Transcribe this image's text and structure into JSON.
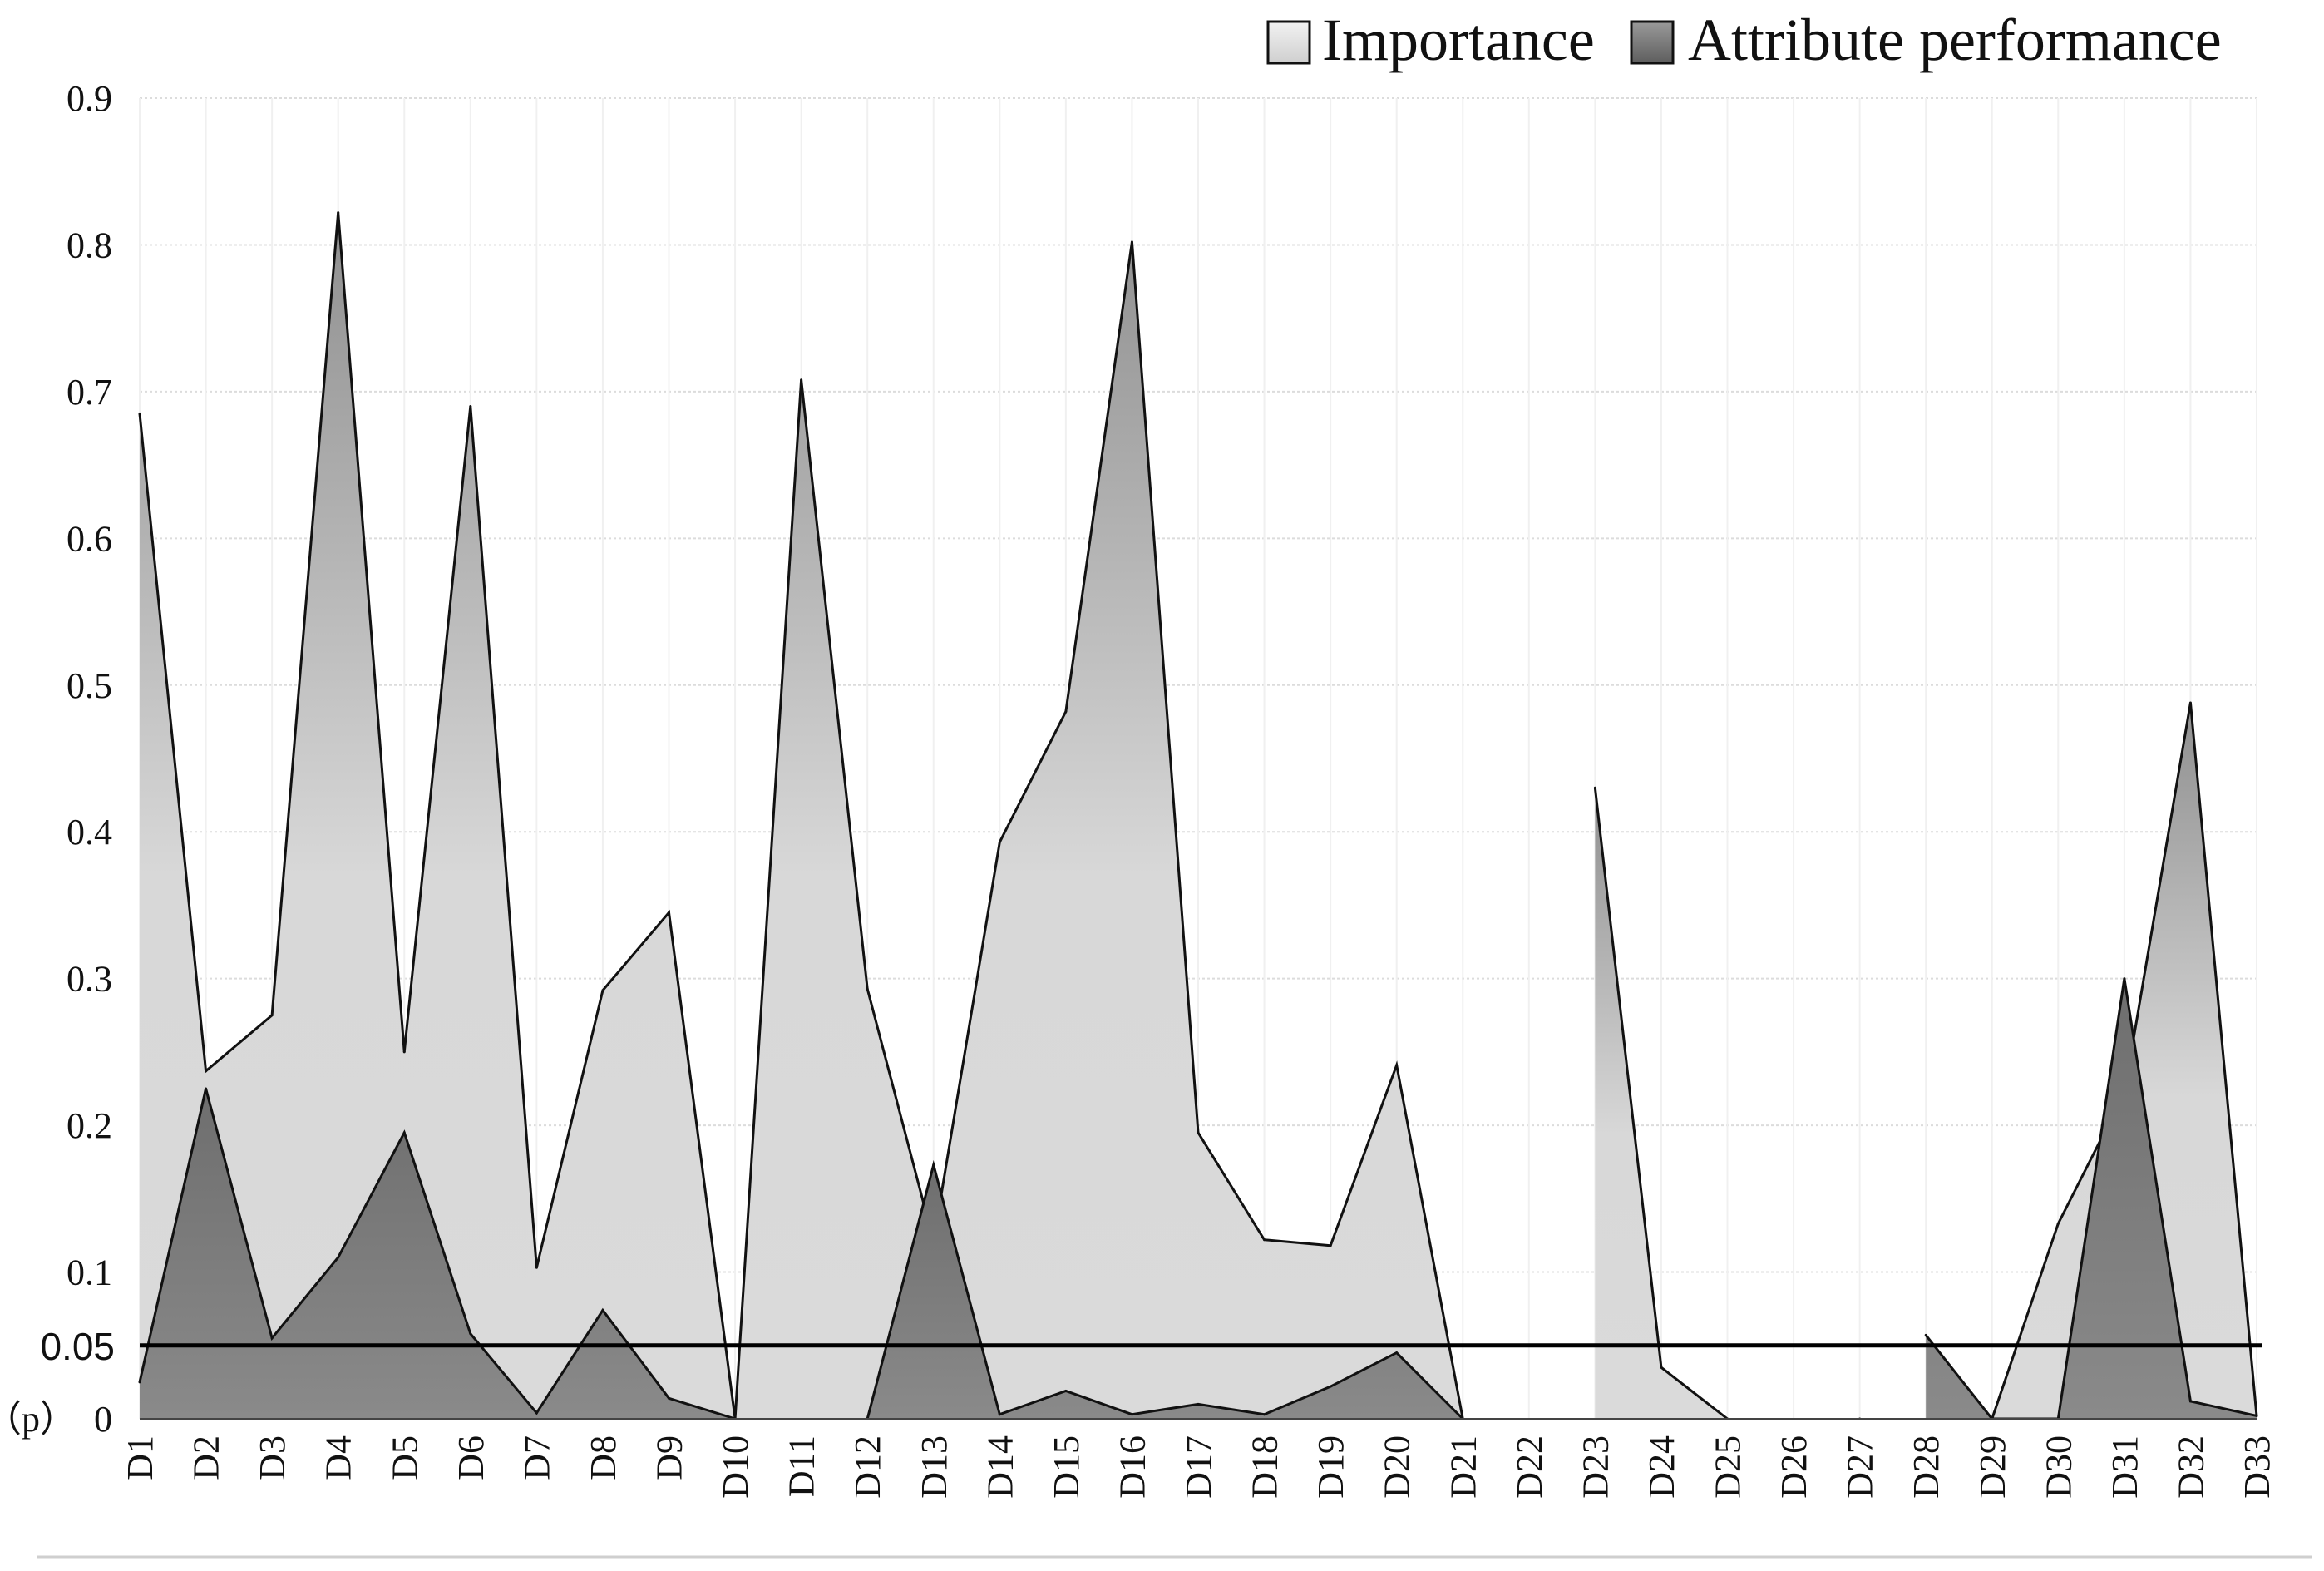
{
  "chart_data": {
    "type": "area",
    "categories": [
      "D1",
      "D2",
      "D3",
      "D4",
      "D5",
      "D6",
      "D7",
      "D8",
      "D9",
      "D10",
      "D11",
      "D12",
      "D13",
      "D14",
      "D15",
      "D16",
      "D17",
      "D18",
      "D19",
      "D20",
      "D21",
      "D22",
      "D23",
      "D24",
      "D25",
      "D26",
      "D27",
      "D28",
      "D29",
      "D30",
      "D31",
      "D32",
      "D33"
    ],
    "series": [
      {
        "name": "Importance",
        "color": "#d4d4d4",
        "values": [
          0.685,
          0.237,
          0.275,
          0.822,
          0.25,
          0.69,
          0.103,
          0.292,
          0.345,
          0.0,
          0.708,
          0.293,
          0.121,
          0.393,
          0.482,
          0.802,
          0.195,
          0.122,
          0.118,
          0.241,
          0.0,
          null,
          0.43,
          0.035,
          0.0,
          null,
          0.0,
          null,
          0.0,
          0.133,
          0.222,
          0.488,
          0.002
        ]
      },
      {
        "name": "Attribute performance",
        "color": "#7a7a7a",
        "values": [
          0.025,
          0.225,
          0.055,
          0.11,
          0.195,
          0.058,
          0.004,
          0.074,
          0.014,
          0.0,
          null,
          0.0,
          0.173,
          0.003,
          0.019,
          0.003,
          0.01,
          0.003,
          0.022,
          0.045,
          0.0,
          null,
          null,
          null,
          null,
          null,
          null,
          0.057,
          0.0,
          0.0,
          0.3,
          0.012,
          0.002
        ]
      }
    ],
    "ylim": [
      0,
      0.9
    ],
    "yticks": [
      "0",
      "0.1",
      "0.2",
      "0.3",
      "0.4",
      "0.5",
      "0.6",
      "0.7",
      "0.8",
      "0.9"
    ],
    "y_prefix_label": "（p）",
    "reference_line": {
      "value": 0.05,
      "label": "0.05"
    },
    "grid": true,
    "legend_position": "top-right"
  }
}
